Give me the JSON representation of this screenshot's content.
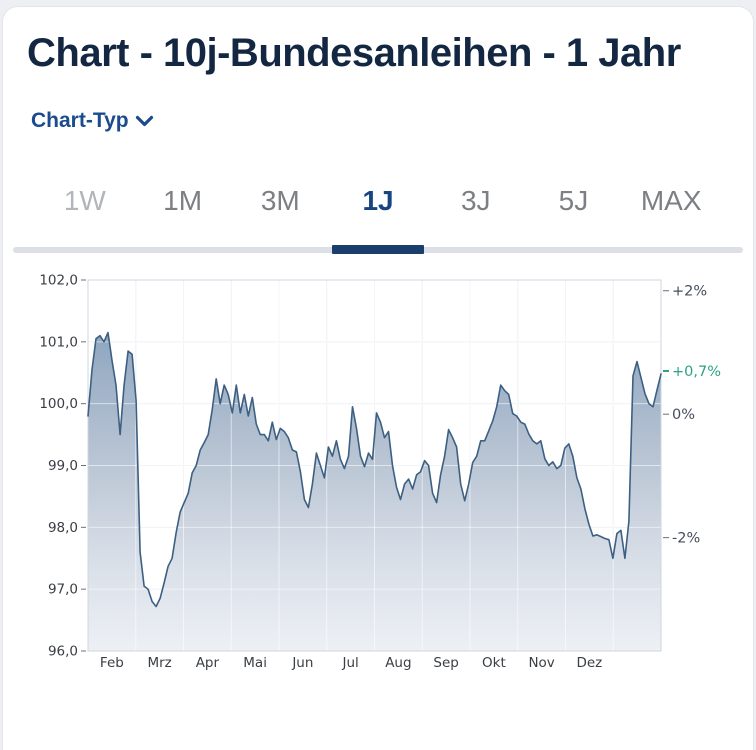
{
  "page": {
    "title": "Chart - 10j-Bundesanleihen - 1 Jahr"
  },
  "chart_type_selector": {
    "label": "Chart-Typ"
  },
  "tabs": {
    "active": "1J",
    "items": [
      {
        "label": "1W",
        "state": "muted"
      },
      {
        "label": "1M",
        "state": ""
      },
      {
        "label": "3M",
        "state": ""
      },
      {
        "label": "1J",
        "state": "active"
      },
      {
        "label": "3J",
        "state": ""
      },
      {
        "label": "5J",
        "state": ""
      },
      {
        "label": "MAX",
        "state": ""
      }
    ]
  },
  "chart_data": {
    "type": "area",
    "title": "10j-Bundesanleihen - 1 Jahr",
    "x_labels": [
      "Feb",
      "Mrz",
      "Apr",
      "Mai",
      "Jun",
      "Jul",
      "Aug",
      "Sep",
      "Okt",
      "Nov",
      "Dez"
    ],
    "x_gridlines": 12,
    "y_left": {
      "min": 96,
      "max": 102,
      "ticks": [
        {
          "v": 102,
          "label": "102,0"
        },
        {
          "v": 101,
          "label": "101,0"
        },
        {
          "v": 100,
          "label": "100,0"
        },
        {
          "v": 99,
          "label": "99,0"
        },
        {
          "v": 98,
          "label": "98,0"
        },
        {
          "v": 97,
          "label": "97,0"
        },
        {
          "v": 96,
          "label": "96,0"
        }
      ]
    },
    "y_right": {
      "base_value": 99.83,
      "ticks": [
        {
          "pct": 2,
          "label": "+2%"
        },
        {
          "pct": 0,
          "label": "0%"
        },
        {
          "pct": -2,
          "label": "-2%"
        }
      ],
      "current": {
        "pct": 0.7,
        "label": "+0,7%"
      }
    },
    "series": [
      {
        "name": "10j-Bundesanleihen",
        "values": [
          99.8,
          100.55,
          101.05,
          101.1,
          101.0,
          101.15,
          100.7,
          100.3,
          99.5,
          100.3,
          100.85,
          100.8,
          100.05,
          97.6,
          97.05,
          97.0,
          96.8,
          96.72,
          96.85,
          97.1,
          97.37,
          97.5,
          97.92,
          98.25,
          98.4,
          98.55,
          98.88,
          99.0,
          99.25,
          99.37,
          99.5,
          99.9,
          100.4,
          100.0,
          100.3,
          100.15,
          99.85,
          100.3,
          99.85,
          100.15,
          99.8,
          100.1,
          99.67,
          99.5,
          99.5,
          99.4,
          99.7,
          99.42,
          99.6,
          99.55,
          99.45,
          99.25,
          99.22,
          98.9,
          98.45,
          98.32,
          98.7,
          99.2,
          99.0,
          98.8,
          99.3,
          99.15,
          99.4,
          99.1,
          98.95,
          99.15,
          99.95,
          99.6,
          99.15,
          98.98,
          99.2,
          99.1,
          99.85,
          99.7,
          99.45,
          99.55,
          99.0,
          98.65,
          98.45,
          98.7,
          98.78,
          98.62,
          98.85,
          98.9,
          99.08,
          99.0,
          98.55,
          98.4,
          98.85,
          99.15,
          99.58,
          99.45,
          99.3,
          98.7,
          98.43,
          98.7,
          99.05,
          99.15,
          99.4,
          99.4,
          99.56,
          99.72,
          99.95,
          100.3,
          100.21,
          100.15,
          99.84,
          99.8,
          99.7,
          99.67,
          99.51,
          99.4,
          99.35,
          99.4,
          99.11,
          99.0,
          99.06,
          98.95,
          99.0,
          99.28,
          99.35,
          99.15,
          98.8,
          98.62,
          98.3,
          98.05,
          97.86,
          97.88,
          97.85,
          97.82,
          97.8,
          97.5,
          97.9,
          97.95,
          97.5,
          98.1,
          100.45,
          100.68,
          100.42,
          100.16,
          100.0,
          99.95,
          100.22,
          100.48
        ]
      }
    ],
    "colors": {
      "line": "#3d5f82",
      "fill_top": "#8fa6c0",
      "fill_mid": "#b9c5d4",
      "fill_low": "#d9dfe8",
      "fill_bottom": "#edf0f5",
      "grid": "#e3e7ed",
      "plot_border": "#cfd6de",
      "axis_text": "#3a3e44",
      "right_axis_text": "#454e5e",
      "current_marker": "#2da285"
    }
  }
}
